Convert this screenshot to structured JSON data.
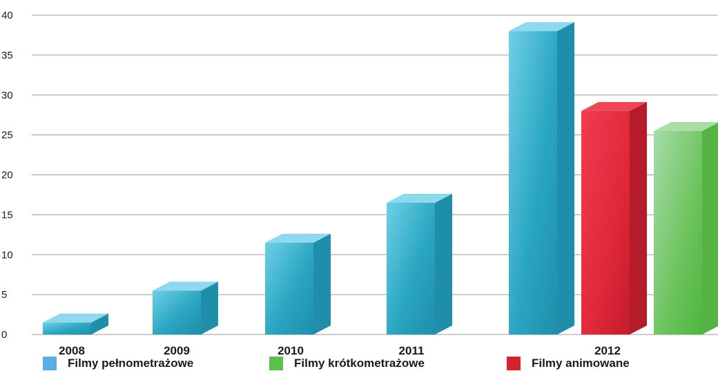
{
  "chart_data": {
    "type": "bar",
    "categories": [
      "2008",
      "2009",
      "2010",
      "2011",
      "2012"
    ],
    "ylim": [
      0,
      40
    ],
    "yticks": [
      0,
      5,
      10,
      15,
      20,
      25,
      30,
      35,
      40
    ],
    "grid": true,
    "legend_placement": "bottom",
    "series": [
      {
        "name": "Filmy pełnometrażowe",
        "color": "#29a6c4",
        "values": [
          1.5,
          5.5,
          11.5,
          16.5,
          38
        ]
      },
      {
        "name": "Filmy krótkometrażowe",
        "color": "#5cbf4e",
        "values": [
          null,
          null,
          null,
          null,
          25.5
        ]
      },
      {
        "name": "Filmy animowane",
        "color": "#e52a3c",
        "values": [
          null,
          null,
          null,
          null,
          28
        ]
      }
    ],
    "legend_colors": [
      "#5aaee0",
      "#5cbf4e",
      "#d42330"
    ]
  }
}
